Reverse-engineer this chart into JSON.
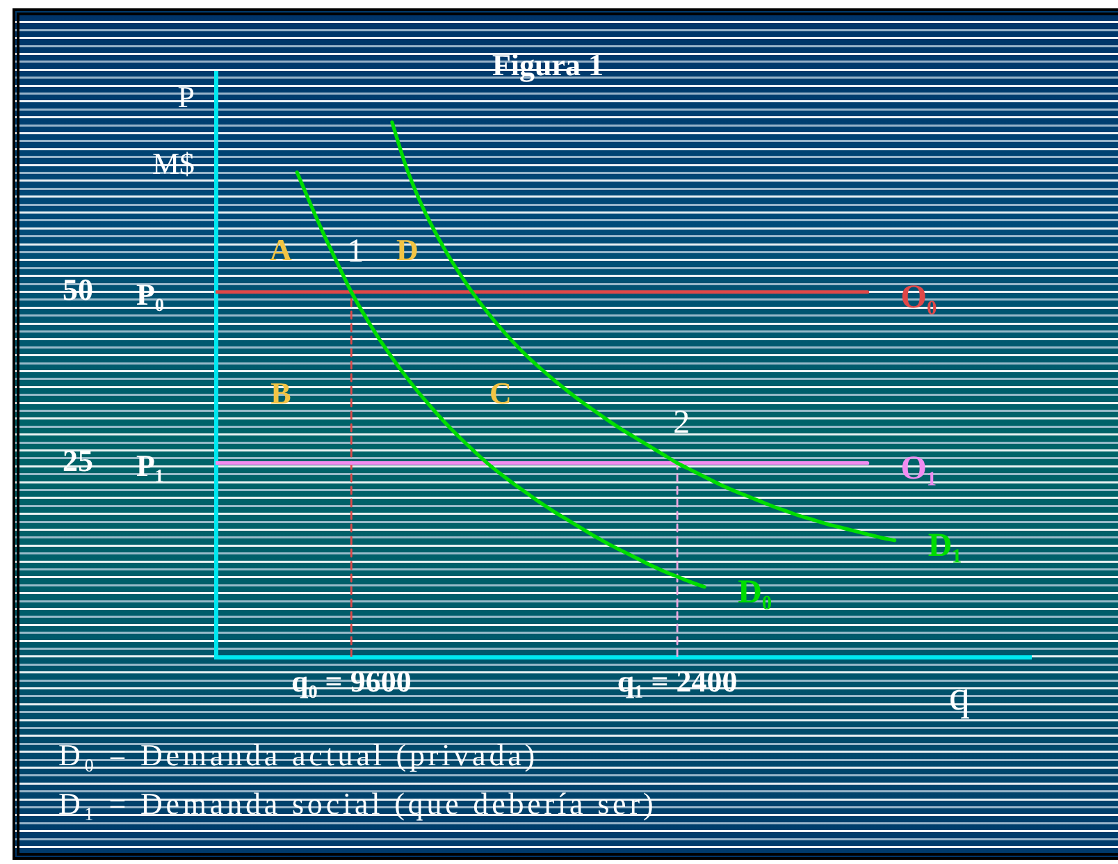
{
  "chart_data": {
    "type": "line",
    "title": "Figura 1",
    "xlabel": "q",
    "ylabel": "P M$",
    "categories": [
      null,
      null,
      null,
      null,
      null,
      null,
      null,
      null,
      null,
      null,
      "q₀ = 9600",
      null,
      null,
      null,
      null,
      null,
      null,
      null,
      null,
      null,
      null,
      null,
      null,
      null,
      null,
      null,
      null,
      null,
      null,
      null,
      null,
      null,
      null,
      null,
      "q₁ = 2400",
      null,
      null,
      null,
      null,
      null,
      null,
      null,
      null,
      null,
      null,
      null,
      null,
      null,
      null,
      null,
      null,
      null,
      null,
      null,
      null,
      null,
      null,
      null,
      null,
      null,
      null
    ],
    "ylim": [
      -3.3,
      82.1
    ],
    "yticks": [
      25,
      50
    ],
    "series": [
      {
        "name": "D₀",
        "color": "#00dd00",
        "values": [
          null,
          null,
          null,
          null,
          null,
          null,
          67.5,
          62.8,
          58.3,
          54.1,
          50,
          46.5,
          43.3,
          40.4,
          37.7,
          35.2,
          32.9,
          30.7,
          28.7,
          26.8,
          25.0,
          23.4,
          21.9,
          20.5,
          19.1,
          17.8,
          16.6,
          15.4,
          14.2,
          13.1,
          12.1,
          11.1,
          10.1,
          9.2,
          8.4,
          7.6,
          6.9,
          null,
          null,
          null,
          null,
          null,
          null,
          null,
          null,
          null,
          null,
          null,
          null,
          null,
          null,
          null,
          null,
          null,
          null,
          null,
          null,
          null,
          null,
          null,
          null
        ]
      },
      {
        "name": "D₁",
        "color": "#00dd00",
        "values": [
          null,
          null,
          null,
          null,
          null,
          null,
          null,
          null,
          null,
          null,
          null,
          null,
          null,
          74.8,
          68.5,
          63.5,
          59.4,
          55.8,
          52.6,
          49.7,
          47.1,
          44.7,
          42.5,
          40.5,
          38.7,
          37.0,
          35.4,
          33.9,
          32.5,
          31.1,
          29.8,
          28.6,
          27.4,
          26.2,
          25,
          24.0,
          23.0,
          22.0,
          21.1,
          20.3,
          19.5,
          18.7,
          18.0,
          17.3,
          16.7,
          16.1,
          15.6,
          15.1,
          14.6,
          14.1,
          13.7,
          null,
          null,
          null,
          null,
          null,
          null,
          null,
          null,
          null,
          null
        ]
      },
      {
        "name": "O₀",
        "color": "#e04848",
        "values": [
          50,
          50,
          50,
          50,
          50,
          50,
          50,
          50,
          50,
          50,
          50,
          50,
          50,
          50,
          50,
          50,
          50,
          50,
          50,
          50,
          50,
          50,
          50,
          50,
          50,
          50,
          50,
          50,
          50,
          50,
          50,
          50,
          50,
          50,
          50,
          50,
          50,
          50,
          50,
          50,
          50,
          50,
          50,
          50,
          50,
          50,
          50,
          50,
          50,
          null,
          null,
          null,
          null,
          null,
          null,
          null,
          null,
          null,
          null,
          null,
          null
        ]
      },
      {
        "name": "O₁",
        "color": "#f08cf0",
        "values": [
          25,
          25,
          25,
          25,
          25,
          25,
          25,
          25,
          25,
          25,
          25,
          25,
          25,
          25,
          25,
          25,
          25,
          25,
          25,
          25,
          25,
          25,
          25,
          25,
          25,
          25,
          25,
          25,
          25,
          25,
          25,
          25,
          25,
          25,
          25,
          25,
          25,
          25,
          25,
          25,
          25,
          25,
          25,
          25,
          25,
          25,
          25,
          25,
          25,
          null,
          null,
          null,
          null,
          null,
          null,
          null,
          null,
          null,
          null,
          null,
          null
        ]
      },
      {
        "color": "#e04848",
        "line_style": "dashed",
        "x": [
          "q₀ = 9600",
          "q₀ = 9600"
        ],
        "values": [
          -3.3,
          50
        ]
      },
      {
        "color": "#f0a8e0",
        "line_style": "dashed",
        "x": [
          "q₁ = 2400",
          "q₁ = 2400"
        ],
        "values": [
          -3.3,
          25
        ]
      }
    ],
    "annotations": [
      "A",
      "D",
      "B",
      "C",
      "P₀",
      "P₁",
      {
        "text": "1",
        "x": "q₀ = 9600",
        "y": 50
      },
      {
        "text": "2",
        "x": "q₁ = 2400",
        "y": 25
      },
      "D₀ = Demanda actual (privada)",
      "D₁ = Demanda social (que debería ser)"
    ]
  }
}
